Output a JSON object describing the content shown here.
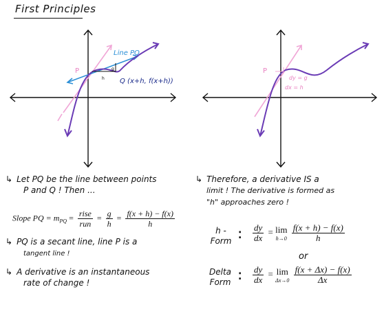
{
  "title": "First Principles",
  "graph_left": {
    "line_pq_label": "Line PQ",
    "p_label": "P",
    "q_label": "Q (x+h, f(x+h))",
    "h_label": "h",
    "g_label": "g"
  },
  "graph_right": {
    "p_label": "P",
    "dy_label": "dy = g",
    "dx_label": "dx = h"
  },
  "notes_left": {
    "line1": "Let PQ be the line between points",
    "line2": "P and Q ! Then ...",
    "slope_prefix": "Slope PQ = m",
    "slope_sub": "PQ",
    "rise": "rise",
    "run": "run",
    "g": "g",
    "h": "h",
    "fx_num": "f(x + h) − f(x)",
    "fx_den": "h",
    "point2_line1": "PQ is a secant line, line P is a",
    "point2_line2": "tangent line !",
    "point3_line1": "A derivative is an instantaneous",
    "point3_line2": "rate of change !"
  },
  "notes_right": {
    "line1": "Therefore, a derivative IS a",
    "line2": "limit ! The derivative is formed as",
    "line3": "\"h\" approaches zero !",
    "h_form_line1": "h -",
    "h_form_line2": "Form",
    "dy": "dy",
    "dx": "dx",
    "lim": "lim",
    "h_sub": "h→0",
    "h_num": "f(x + h) − f(x)",
    "h_den": "h",
    "or": "or",
    "delta_form_line1": "Delta",
    "delta_form_line2": "Form",
    "delta_sub": "Δx→0",
    "delta_num": "f(x + Δx) − f(x)",
    "delta_den": "Δx"
  }
}
